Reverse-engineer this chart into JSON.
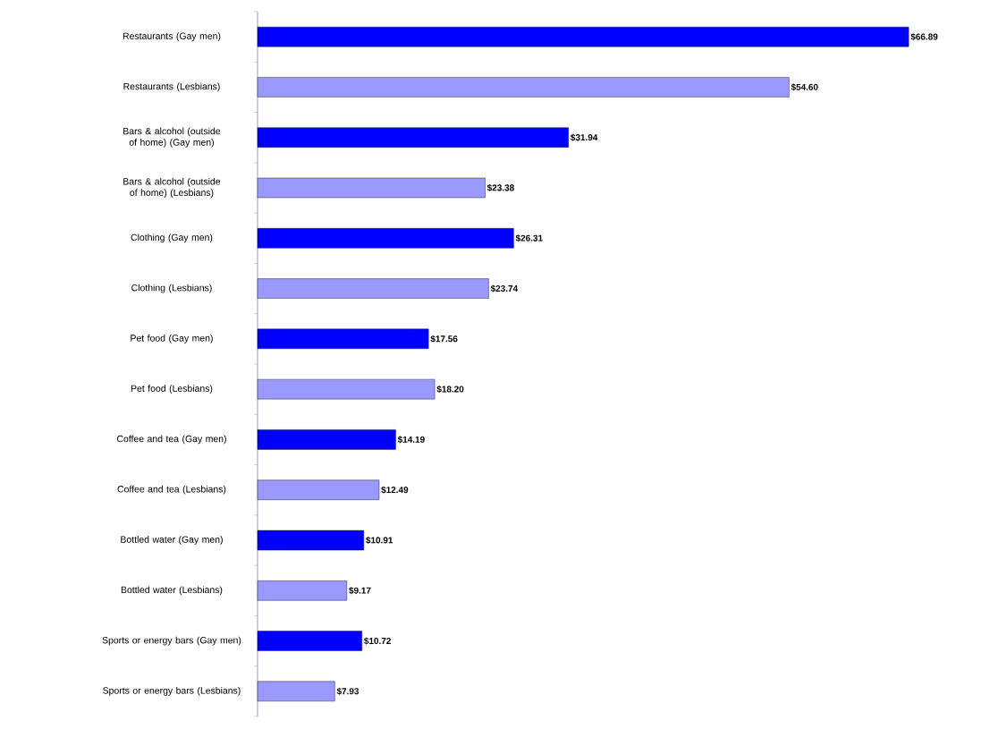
{
  "chart_data": {
    "type": "bar",
    "orientation": "horizontal",
    "categories": [
      "Restaurants (Gay men)",
      "Restaurants (Lesbians)",
      "Bars & alcohol (outside of home) (Gay men)",
      "Bars & alcohol (outside of home) (Lesbians)",
      "Clothing (Gay men)",
      "Clothing (Lesbians)",
      "Pet food (Gay men)",
      "Pet food (Lesbians)",
      "Coffee and tea (Gay men)",
      "Coffee and tea (Lesbians)",
      "Bottled water (Gay men)",
      "Bottled water (Lesbians)",
      "Sports or energy bars (Gay men)",
      "Sports or energy bars (Lesbians)"
    ],
    "values": [
      66.89,
      54.6,
      31.94,
      23.38,
      26.31,
      23.74,
      17.56,
      18.2,
      14.19,
      12.49,
      10.91,
      9.17,
      10.72,
      7.93
    ],
    "value_labels": [
      "$66.89",
      "$54.60",
      "$31.94",
      "$23.38",
      "$26.31",
      "$23.74",
      "$17.56",
      "$18.20",
      "$14.19",
      "$12.49",
      "$10.91",
      "$9.17",
      "$10.72",
      "$7.93"
    ],
    "colors": [
      "#0000ff",
      "#9999ff",
      "#0000ff",
      "#9999ff",
      "#0000ff",
      "#9999ff",
      "#0000ff",
      "#9999ff",
      "#0000ff",
      "#9999ff",
      "#0000ff",
      "#9999ff",
      "#0000ff",
      "#9999ff"
    ]
  }
}
